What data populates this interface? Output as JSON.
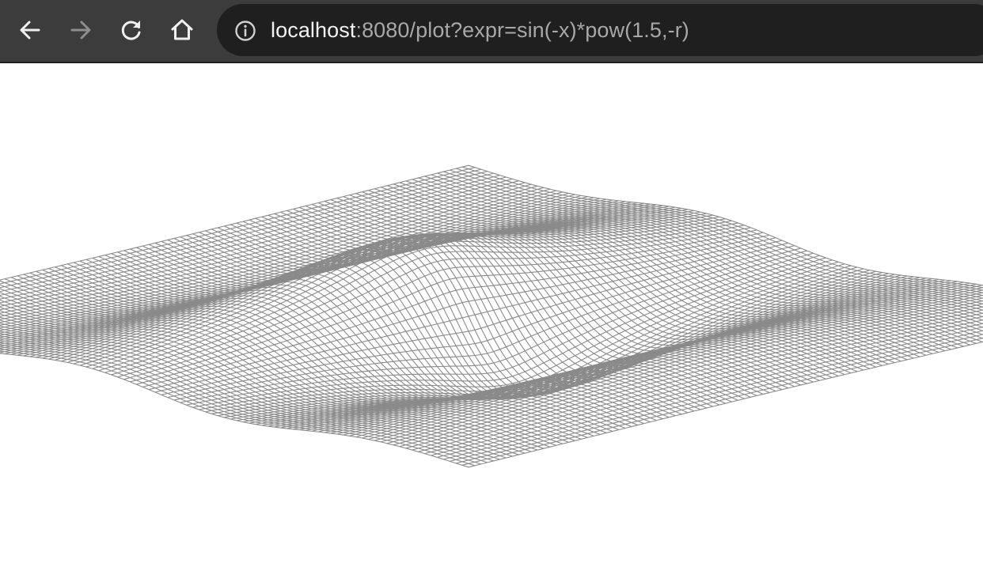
{
  "browser": {
    "url_host": "localhost",
    "url_rest": ":8080/plot?expr=sin(-x)*pow(1.5,-r)",
    "icons": {
      "back": "arrow-left-icon",
      "forward": "arrow-right-icon",
      "reload": "reload-icon",
      "home": "home-icon",
      "info": "info-icon"
    },
    "forward_enabled": false
  },
  "colors": {
    "toolbar": "#3c3c3c",
    "omnibox": "#1f1f1f",
    "wire": "#8a8a8a",
    "background": "#ffffff"
  },
  "chart_data": {
    "type": "surface-wireframe",
    "expression": "sin(-x)*pow(1.5,-r)",
    "grid_lines_per_axis": 101,
    "domain": [
      -6,
      6
    ],
    "projection": "isometric"
  }
}
